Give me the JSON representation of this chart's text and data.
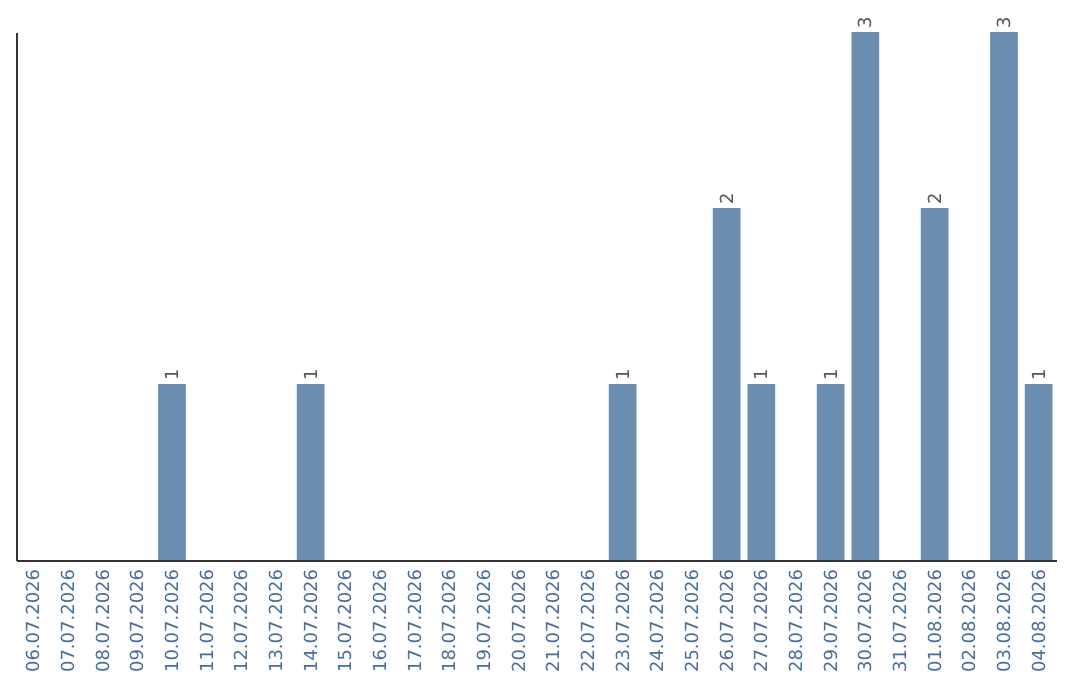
{
  "chart_data": {
    "type": "bar",
    "categories": [
      "06.07.2026",
      "07.07.2026",
      "08.07.2026",
      "09.07.2026",
      "10.07.2026",
      "11.07.2026",
      "12.07.2026",
      "13.07.2026",
      "14.07.2026",
      "15.07.2026",
      "16.07.2026",
      "17.07.2026",
      "18.07.2026",
      "19.07.2026",
      "20.07.2026",
      "21.07.2026",
      "22.07.2026",
      "23.07.2026",
      "24.07.2026",
      "25.07.2026",
      "26.07.2026",
      "27.07.2026",
      "28.07.2026",
      "29.07.2026",
      "30.07.2026",
      "31.07.2026",
      "01.08.2026",
      "02.08.2026",
      "03.08.2026",
      "04.08.2026"
    ],
    "values": [
      0,
      0,
      0,
      0,
      1,
      0,
      0,
      0,
      1,
      0,
      0,
      0,
      0,
      0,
      0,
      0,
      0,
      1,
      0,
      0,
      2,
      1,
      0,
      1,
      3,
      0,
      2,
      0,
      3,
      1
    ],
    "value_labels": [
      null,
      null,
      null,
      null,
      "1",
      null,
      null,
      null,
      "1",
      null,
      null,
      null,
      null,
      null,
      null,
      null,
      null,
      "1",
      null,
      null,
      "2",
      "1",
      null,
      "1",
      "3",
      null,
      "2",
      null,
      "3",
      "1"
    ],
    "color": "#6a8caf",
    "tick_labels": "x"
  }
}
